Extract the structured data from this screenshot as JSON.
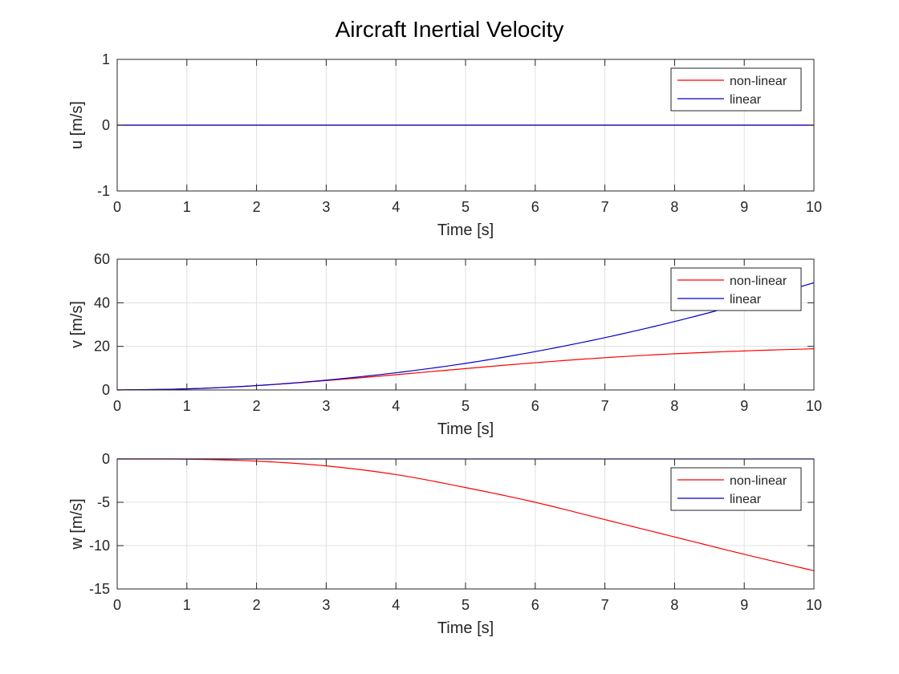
{
  "figure": {
    "title": "Aircraft Inertial Velocity"
  },
  "colors": {
    "non_linear": "#ff0000",
    "linear": "#0000cc",
    "axes": "#262626",
    "grid": "#e0e0e0"
  },
  "chart_data": [
    {
      "type": "line",
      "title": "",
      "xlabel": "Time [s]",
      "ylabel": "u [m/s]",
      "xlim": [
        0,
        10
      ],
      "ylim": [
        -1,
        1
      ],
      "xticks": [
        0,
        1,
        2,
        3,
        4,
        5,
        6,
        7,
        8,
        9,
        10
      ],
      "yticks": [
        -1,
        0,
        1
      ],
      "grid": true,
      "legend_position": "top-right",
      "series": [
        {
          "name": "non-linear",
          "color": "#ff0000",
          "x": [
            0,
            1,
            2,
            3,
            4,
            5,
            6,
            7,
            8,
            9,
            10
          ],
          "y": [
            0,
            0,
            0,
            0,
            0,
            0,
            0,
            0,
            0,
            0,
            0
          ]
        },
        {
          "name": "linear",
          "color": "#0000cc",
          "x": [
            0,
            1,
            2,
            3,
            4,
            5,
            6,
            7,
            8,
            9,
            10
          ],
          "y": [
            0,
            0,
            0,
            0,
            0,
            0,
            0,
            0,
            0,
            0,
            0
          ]
        }
      ]
    },
    {
      "type": "line",
      "title": "",
      "xlabel": "Time [s]",
      "ylabel": "v [m/s]",
      "xlim": [
        0,
        10
      ],
      "ylim": [
        0,
        60
      ],
      "xticks": [
        0,
        1,
        2,
        3,
        4,
        5,
        6,
        7,
        8,
        9,
        10
      ],
      "yticks": [
        0,
        20,
        40,
        60
      ],
      "grid": true,
      "legend_position": "top-right",
      "series": [
        {
          "name": "non-linear",
          "color": "#ff0000",
          "x": [
            0,
            1,
            2,
            3,
            4,
            5,
            6,
            7,
            8,
            9,
            10
          ],
          "y": [
            0,
            0.5,
            2.0,
            4.3,
            7.0,
            9.8,
            12.5,
            14.8,
            16.6,
            17.9,
            18.9
          ]
        },
        {
          "name": "linear",
          "color": "#0000cc",
          "x": [
            0,
            1,
            2,
            3,
            4,
            5,
            6,
            7,
            8,
            9,
            10
          ],
          "y": [
            0,
            0.5,
            2.0,
            4.5,
            7.9,
            12.2,
            17.6,
            24.0,
            31.4,
            39.8,
            49.2
          ]
        }
      ]
    },
    {
      "type": "line",
      "title": "",
      "xlabel": "Time [s]",
      "ylabel": "w [m/s]",
      "xlim": [
        0,
        10
      ],
      "ylim": [
        -15,
        0
      ],
      "xticks": [
        0,
        1,
        2,
        3,
        4,
        5,
        6,
        7,
        8,
        9,
        10
      ],
      "yticks": [
        -15,
        -10,
        -5,
        0
      ],
      "grid": true,
      "legend_position": "top-right",
      "series": [
        {
          "name": "non-linear",
          "color": "#ff0000",
          "x": [
            0,
            1,
            2,
            3,
            4,
            5,
            6,
            7,
            8,
            9,
            10
          ],
          "y": [
            0,
            -0.02,
            -0.25,
            -0.8,
            -1.8,
            -3.3,
            -5.0,
            -7.0,
            -9.0,
            -11.0,
            -12.9
          ]
        },
        {
          "name": "linear",
          "color": "#0000cc",
          "x": [
            0,
            1,
            2,
            3,
            4,
            5,
            6,
            7,
            8,
            9,
            10
          ],
          "y": [
            0,
            0,
            0,
            0,
            0,
            0,
            0,
            0,
            0,
            0,
            0
          ]
        }
      ]
    }
  ]
}
